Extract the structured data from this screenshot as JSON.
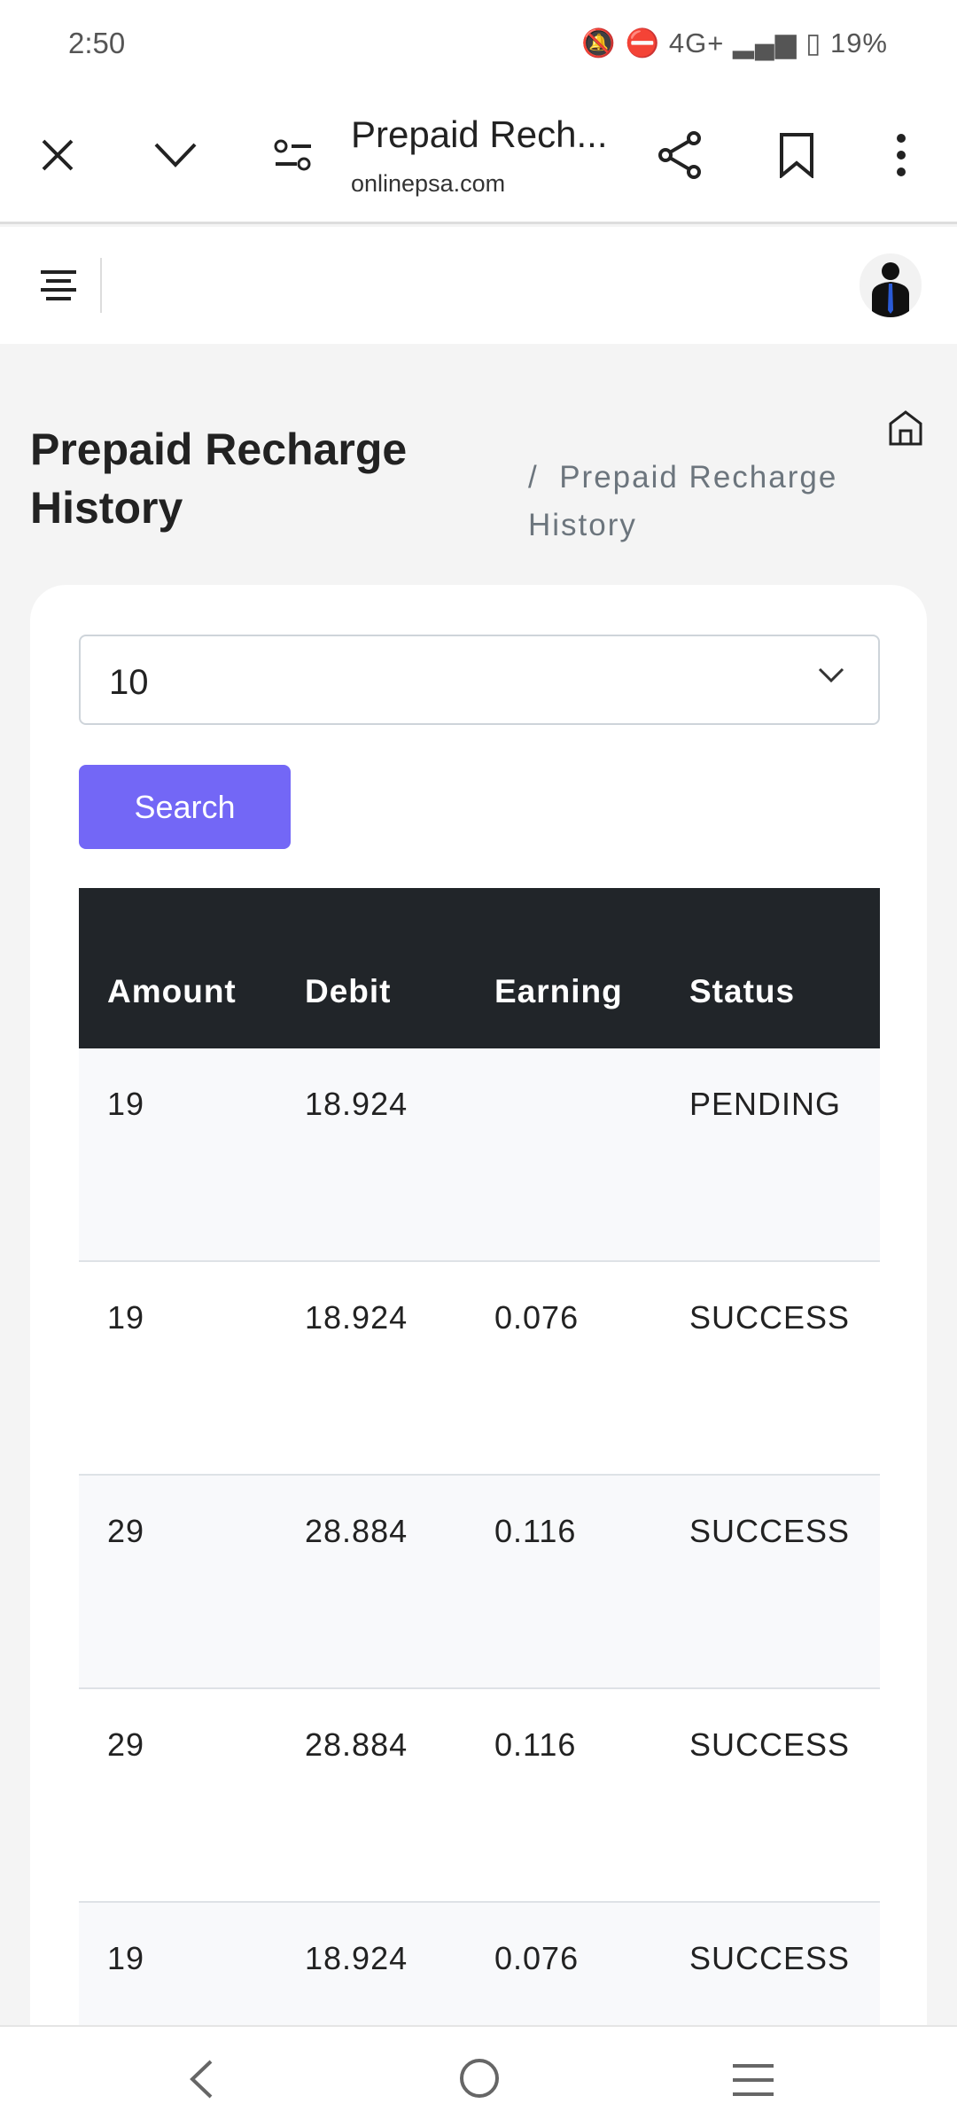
{
  "status_bar": {
    "time": "2:50",
    "indicators": "4G+",
    "battery": "19%"
  },
  "browser": {
    "title": "Prepaid Rech...",
    "url": "onlinepsa.com"
  },
  "page": {
    "title": "Prepaid Recharge History",
    "breadcrumb_sep": "/",
    "breadcrumb_current": "Prepaid Recharge History"
  },
  "filter": {
    "page_size": "10",
    "search_label": "Search"
  },
  "table": {
    "headers": [
      "Amount",
      "Debit",
      "Earning",
      "Status"
    ],
    "rows": [
      [
        "19",
        "18.924",
        "",
        "PENDING"
      ],
      [
        "19",
        "18.924",
        "0.076",
        "SUCCESS"
      ],
      [
        "29",
        "28.884",
        "0.116",
        "SUCCESS"
      ],
      [
        "29",
        "28.884",
        "0.116",
        "SUCCESS"
      ],
      [
        "19",
        "18.924",
        "0.076",
        "SUCCESS"
      ]
    ]
  },
  "colors": {
    "accent": "#7367f6",
    "table_header": "#212529"
  }
}
